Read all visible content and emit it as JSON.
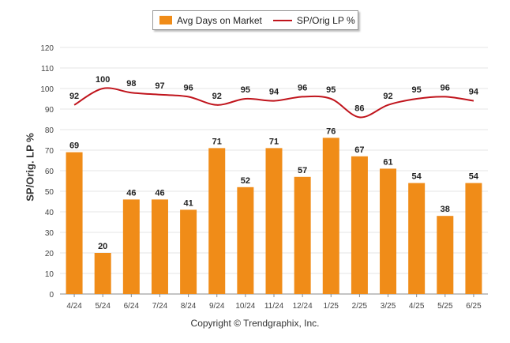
{
  "legend": {
    "bar_label": "Avg Days on Market",
    "line_label": "SP/Orig LP %"
  },
  "footer": "Copyright © Trendgraphix, Inc.",
  "colors": {
    "bar": "#f08c18",
    "line": "#c0141c",
    "grid": "#e4e4e4",
    "axis": "#888888"
  },
  "chart_data": {
    "type": "bar",
    "title": "",
    "xlabel": "",
    "ylabel": "SP/Orig. LP %",
    "ylim": [
      0,
      120
    ],
    "yticks": [
      0,
      10,
      20,
      30,
      40,
      50,
      60,
      70,
      80,
      90,
      100,
      110,
      120
    ],
    "grid": true,
    "legend_position": "top-center",
    "categories": [
      "4/24",
      "5/24",
      "6/24",
      "7/24",
      "8/24",
      "9/24",
      "10/24",
      "11/24",
      "12/24",
      "1/25",
      "2/25",
      "3/25",
      "4/25",
      "5/25",
      "6/25"
    ],
    "series": [
      {
        "name": "Avg Days on Market",
        "type": "bar",
        "values": [
          69,
          20,
          46,
          46,
          41,
          71,
          52,
          71,
          57,
          76,
          67,
          61,
          54,
          38,
          54
        ]
      },
      {
        "name": "SP/Orig LP %",
        "type": "line",
        "values": [
          92,
          100,
          98,
          97,
          96,
          92,
          95,
          94,
          96,
          95,
          86,
          92,
          95,
          96,
          94
        ]
      }
    ]
  }
}
